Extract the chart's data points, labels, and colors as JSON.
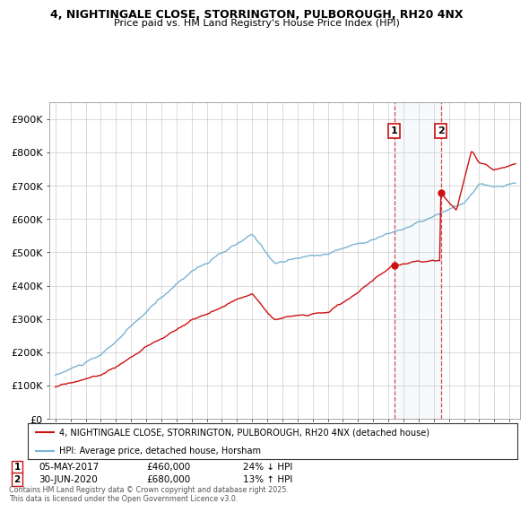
{
  "title_line1": "4, NIGHTINGALE CLOSE, STORRINGTON, PULBOROUGH, RH20 4NX",
  "title_line2": "Price paid vs. HM Land Registry's House Price Index (HPI)",
  "ylim": [
    0,
    950000
  ],
  "yticks": [
    0,
    100000,
    200000,
    300000,
    400000,
    500000,
    600000,
    700000,
    800000,
    900000
  ],
  "ytick_labels": [
    "£0",
    "£100K",
    "£200K",
    "£300K",
    "£400K",
    "£500K",
    "£600K",
    "£700K",
    "£800K",
    "£900K"
  ],
  "hpi_color": "#7ab3d4",
  "price_color": "#cc1111",
  "vline_color": "#cc2222",
  "annotation1": [
    "1",
    "05-MAY-2017",
    "£460,000",
    "24% ↓ HPI"
  ],
  "annotation2": [
    "2",
    "30-JUN-2020",
    "£680,000",
    "13% ↑ HPI"
  ],
  "legend_property": "4, NIGHTINGALE CLOSE, STORRINGTON, PULBOROUGH, RH20 4NX (detached house)",
  "legend_hpi": "HPI: Average price, detached house, Horsham",
  "footer": "Contains HM Land Registry data © Crown copyright and database right 2025.\nThis data is licensed under the Open Government Licence v3.0.",
  "background_color": "#ffffff",
  "grid_color": "#cccccc"
}
